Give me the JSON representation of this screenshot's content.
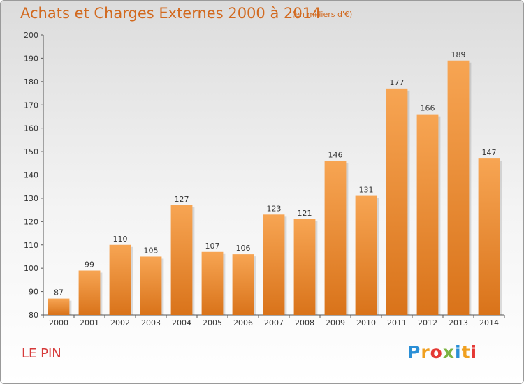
{
  "header": {
    "title": "Achats et Charges Externes 2000 à 2014",
    "unit_note": "(en milliers d'€)"
  },
  "footer": {
    "commune": "LE PIN",
    "logo_text": "Proxiti"
  },
  "colors": {
    "bar_top": "#f7a553",
    "bar_bottom": "#d9731a",
    "title": "#d2691e",
    "commune": "#d63a3a"
  },
  "chart_data": {
    "type": "bar",
    "categories": [
      "2000",
      "2001",
      "2002",
      "2003",
      "2004",
      "2005",
      "2006",
      "2007",
      "2008",
      "2009",
      "2010",
      "2011",
      "2012",
      "2013",
      "2014"
    ],
    "values": [
      87,
      99,
      110,
      105,
      127,
      107,
      106,
      123,
      121,
      146,
      131,
      177,
      166,
      189,
      147
    ],
    "title": "Achats et Charges Externes 2000 à 2014",
    "ylim": [
      80,
      200
    ],
    "yticks": [
      80,
      90,
      100,
      110,
      120,
      130,
      140,
      150,
      160,
      170,
      180,
      190,
      200
    ],
    "grid": false,
    "data_labels": true
  }
}
